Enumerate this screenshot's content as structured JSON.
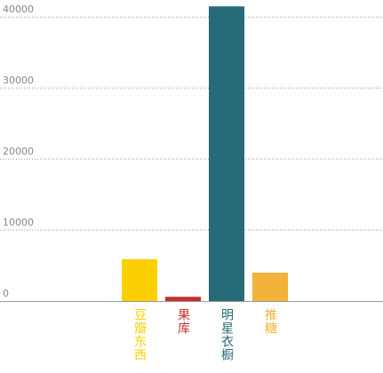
{
  "chart_data": {
    "type": "bar",
    "categories": [
      "豆瓣东西",
      "果库",
      "明星衣橱",
      "推糖"
    ],
    "series": [
      {
        "values": [
          5900,
          600,
          41500,
          4000
        ],
        "colors": [
          "#fcd000",
          "#c2332b",
          "#276b7a",
          "#f2b33a"
        ]
      }
    ],
    "ylim": [
      0,
      42400
    ],
    "yticks": [
      0,
      10000,
      20000,
      30000,
      40000
    ],
    "grid": true
  }
}
